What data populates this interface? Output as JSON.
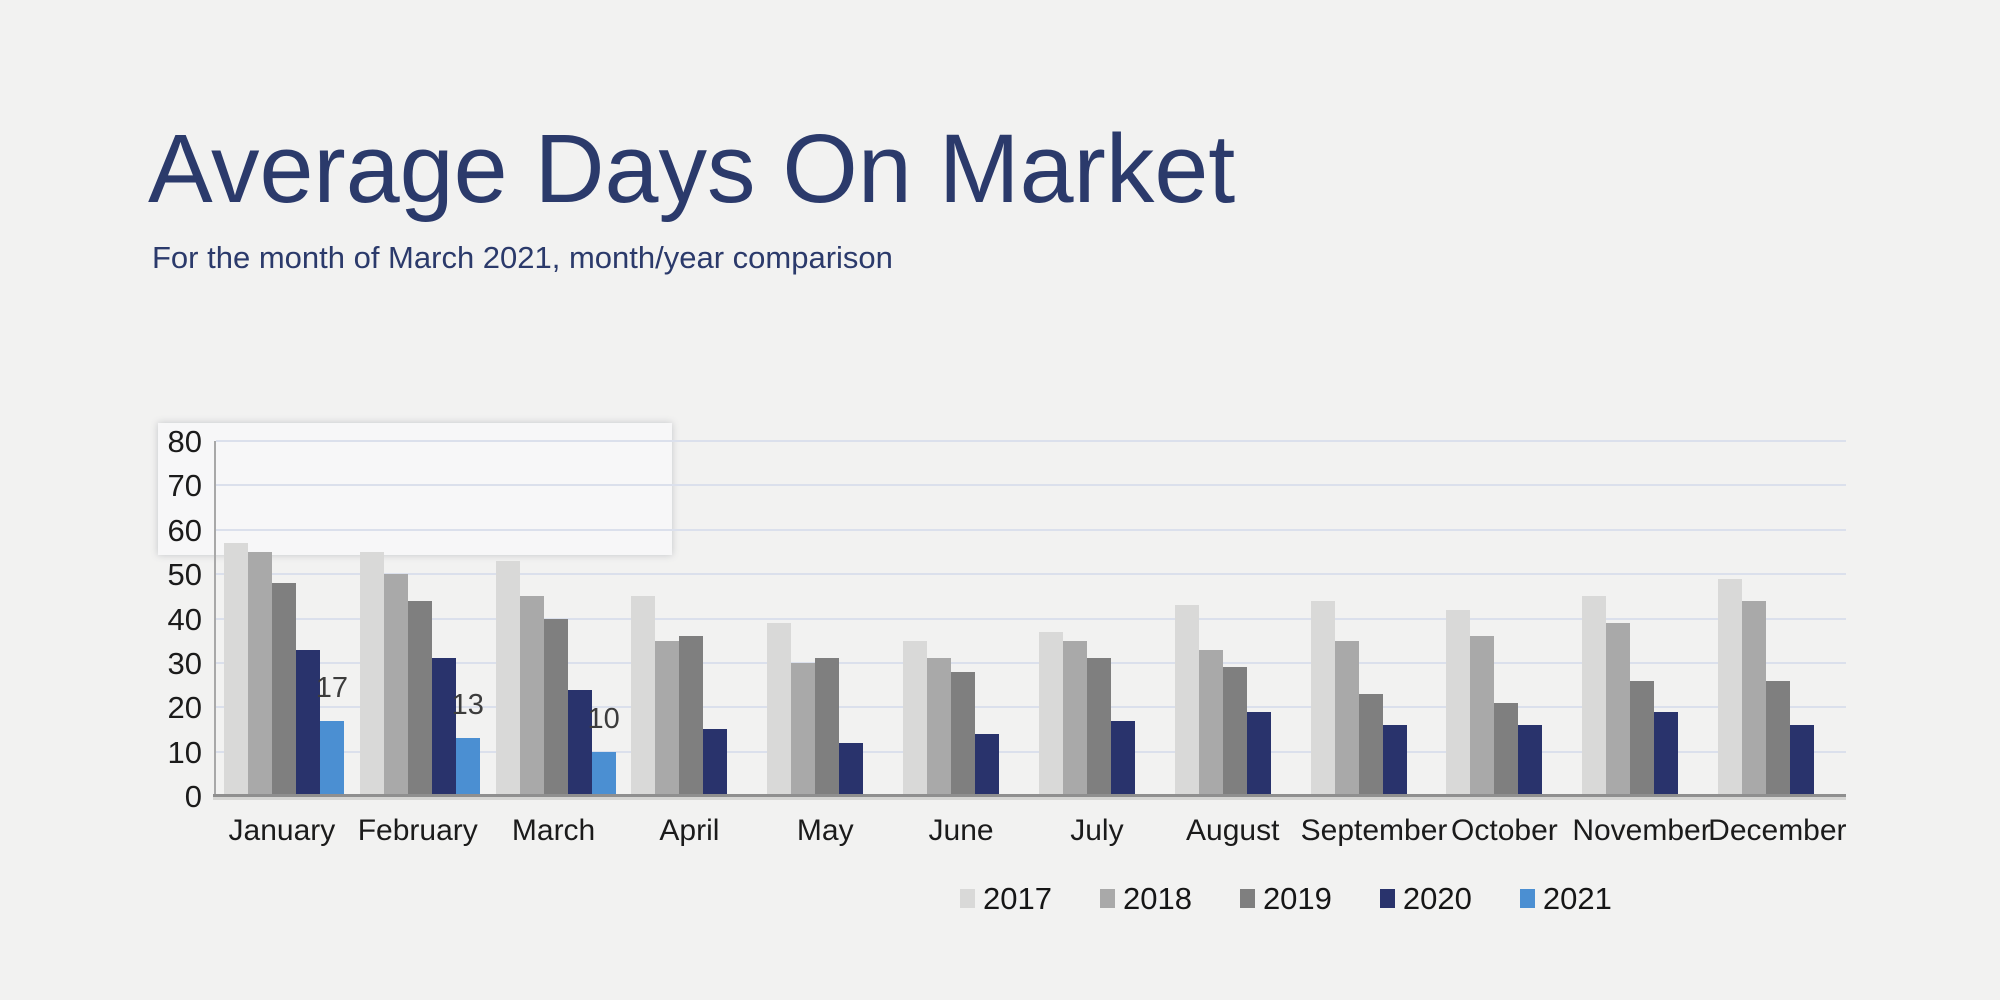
{
  "page": {
    "background": "#f2f2f1"
  },
  "header": {
    "title": "Average Days On Market",
    "subtitle": "For the month of March 2021, month/year comparison",
    "title_color": "#2b3a6b"
  },
  "chart_data": {
    "type": "bar",
    "title": "Average Days On Market",
    "subtitle": "For the month of March 2021, month/year comparison",
    "categories": [
      "January",
      "February",
      "March",
      "April",
      "May",
      "June",
      "July",
      "August",
      "September",
      "October",
      "November",
      "December"
    ],
    "series": [
      {
        "name": "2017",
        "color": "#d9d9d8",
        "values": [
          57,
          55,
          53,
          45,
          39,
          35,
          37,
          43,
          44,
          42,
          45,
          49
        ],
        "show_value_labels": false
      },
      {
        "name": "2018",
        "color": "#a9a9a9",
        "values": [
          55,
          50,
          45,
          35,
          30,
          31,
          35,
          33,
          35,
          36,
          39,
          44
        ],
        "show_value_labels": false
      },
      {
        "name": "2019",
        "color": "#7f7f7f",
        "values": [
          48,
          44,
          40,
          36,
          31,
          28,
          31,
          29,
          23,
          21,
          26,
          26
        ],
        "show_value_labels": false
      },
      {
        "name": "2020",
        "color": "#29336c",
        "values": [
          33,
          31,
          24,
          15,
          12,
          14,
          17,
          19,
          16,
          16,
          19,
          16
        ],
        "show_value_labels": false
      },
      {
        "name": "2021",
        "color": "#4b8fd2",
        "values": [
          17,
          13,
          10,
          null,
          null,
          null,
          null,
          null,
          null,
          null,
          null,
          null
        ],
        "show_value_labels": true
      }
    ],
    "xlabel": "",
    "ylabel": "",
    "ylim": [
      0,
      80
    ],
    "yticks": [
      0,
      10,
      20,
      30,
      40,
      50,
      60,
      70,
      80
    ],
    "grid": "horizontal",
    "gridline_color": "#dbe0ec",
    "axis_color": "#8f8f8f",
    "tick_label_color": "#1b1b1b",
    "value_label_color": "#3c3c3c",
    "legend_position": "top"
  }
}
